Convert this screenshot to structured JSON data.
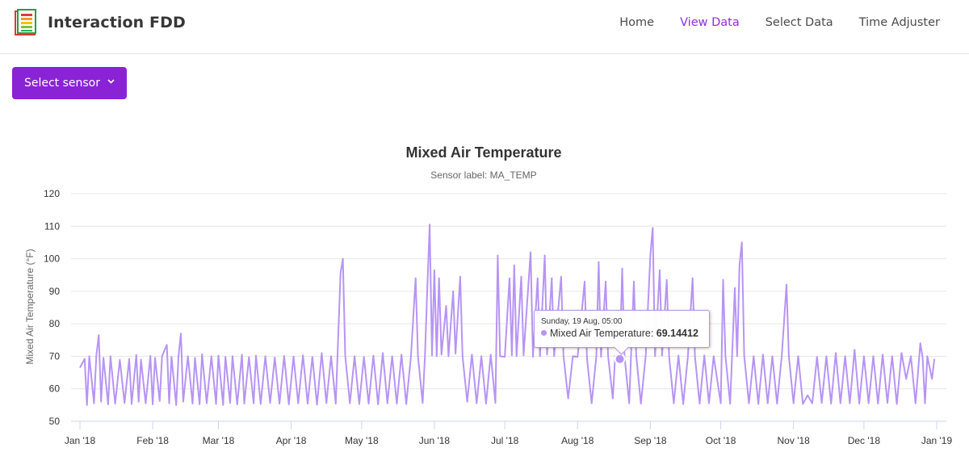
{
  "app": {
    "title": "Interaction FDD",
    "logo_icon": "bar-chart-notebook-icon"
  },
  "nav": {
    "items": [
      {
        "label": "Home",
        "active": false
      },
      {
        "label": "View Data",
        "active": true
      },
      {
        "label": "Select Data",
        "active": false
      },
      {
        "label": "Time Adjuster",
        "active": false
      }
    ],
    "active_color": "#8e2de2"
  },
  "sensor_select": {
    "label": "Select sensor",
    "icon": "chevron-down-icon",
    "color": "#8a22d6"
  },
  "chart_data": {
    "type": "line",
    "title": "Mixed Air Temperature",
    "subtitle": "Sensor label: MA_TEMP",
    "ylabel": "Mixed Air Temperature (°F)",
    "xlabel": "",
    "ylim": [
      50,
      120
    ],
    "yticks": [
      50,
      60,
      70,
      80,
      90,
      100,
      110,
      120
    ],
    "x_range": [
      "2018-01-01",
      "2019-01-01"
    ],
    "x_tick_labels": [
      "Jan '18",
      "Feb '18",
      "Mar '18",
      "Apr '18",
      "May '18",
      "Jun '18",
      "Jul '18",
      "Aug '18",
      "Sep '18",
      "Oct '18",
      "Nov '18",
      "Dec '18",
      "Jan '19"
    ],
    "grid": true,
    "legend": "none",
    "series": [
      {
        "color": "#b794f4",
        "points": [
          [
            "2018-01-01",
            66.5
          ],
          [
            "2018-01-03",
            69.2
          ],
          [
            "2018-01-04",
            55.0
          ],
          [
            "2018-01-05",
            70.0
          ],
          [
            "2018-01-07",
            55.5
          ],
          [
            "2018-01-08",
            70.2
          ],
          [
            "2018-01-09",
            76.5
          ],
          [
            "2018-01-10",
            56.0
          ],
          [
            "2018-01-11",
            69.5
          ],
          [
            "2018-01-13",
            55.2
          ],
          [
            "2018-01-14",
            70.0
          ],
          [
            "2018-01-16",
            55.4
          ],
          [
            "2018-01-18",
            68.9
          ],
          [
            "2018-01-20",
            55.6
          ],
          [
            "2018-01-22",
            69.2
          ],
          [
            "2018-01-23",
            55.3
          ],
          [
            "2018-01-25",
            70.4
          ],
          [
            "2018-01-26",
            56.0
          ],
          [
            "2018-01-27",
            69.0
          ],
          [
            "2018-01-29",
            55.5
          ],
          [
            "2018-01-31",
            70.1
          ],
          [
            "2018-02-01",
            55.2
          ],
          [
            "2018-02-02",
            69.5
          ],
          [
            "2018-02-04",
            56.2
          ],
          [
            "2018-02-05",
            70.0
          ],
          [
            "2018-02-07",
            73.5
          ],
          [
            "2018-02-08",
            55.5
          ],
          [
            "2018-02-09",
            69.8
          ],
          [
            "2018-02-11",
            55.0
          ],
          [
            "2018-02-12",
            70.2
          ],
          [
            "2018-02-13",
            77.0
          ],
          [
            "2018-02-14",
            56.0
          ],
          [
            "2018-02-16",
            70.0
          ],
          [
            "2018-02-18",
            55.4
          ],
          [
            "2018-02-19",
            69.5
          ],
          [
            "2018-02-21",
            55.2
          ],
          [
            "2018-02-22",
            70.6
          ],
          [
            "2018-02-24",
            55.5
          ],
          [
            "2018-02-26",
            70.0
          ],
          [
            "2018-02-28",
            55.3
          ],
          [
            "2018-03-01",
            70.2
          ],
          [
            "2018-03-03",
            55.0
          ],
          [
            "2018-03-04",
            69.8
          ],
          [
            "2018-03-06",
            55.6
          ],
          [
            "2018-03-07",
            70.0
          ],
          [
            "2018-03-09",
            55.2
          ],
          [
            "2018-03-11",
            70.5
          ],
          [
            "2018-03-12",
            55.4
          ],
          [
            "2018-03-14",
            69.7
          ],
          [
            "2018-03-16",
            55.5
          ],
          [
            "2018-03-17",
            70.2
          ],
          [
            "2018-03-19",
            55.3
          ],
          [
            "2018-03-21",
            70.0
          ],
          [
            "2018-03-23",
            55.6
          ],
          [
            "2018-03-25",
            69.6
          ],
          [
            "2018-03-27",
            55.4
          ],
          [
            "2018-03-29",
            70.1
          ],
          [
            "2018-03-31",
            55.2
          ],
          [
            "2018-04-02",
            69.9
          ],
          [
            "2018-04-04",
            55.5
          ],
          [
            "2018-04-06",
            70.3
          ],
          [
            "2018-04-08",
            55.4
          ],
          [
            "2018-04-10",
            69.8
          ],
          [
            "2018-04-12",
            55.1
          ],
          [
            "2018-04-14",
            71.0
          ],
          [
            "2018-04-16",
            55.6
          ],
          [
            "2018-04-18",
            70.0
          ],
          [
            "2018-04-20",
            55.4
          ],
          [
            "2018-04-22",
            95.5
          ],
          [
            "2018-04-23",
            100.0
          ],
          [
            "2018-04-24",
            70.2
          ],
          [
            "2018-04-26",
            55.5
          ],
          [
            "2018-04-28",
            70.0
          ],
          [
            "2018-04-30",
            55.3
          ],
          [
            "2018-05-02",
            69.8
          ],
          [
            "2018-05-04",
            55.4
          ],
          [
            "2018-05-06",
            70.2
          ],
          [
            "2018-05-08",
            55.2
          ],
          [
            "2018-05-10",
            71.0
          ],
          [
            "2018-05-12",
            55.5
          ],
          [
            "2018-05-14",
            70.0
          ],
          [
            "2018-05-16",
            55.4
          ],
          [
            "2018-05-18",
            70.5
          ],
          [
            "2018-05-20",
            55.3
          ],
          [
            "2018-05-22",
            69.9
          ],
          [
            "2018-05-24",
            94.0
          ],
          [
            "2018-05-25",
            70.0
          ],
          [
            "2018-05-27",
            55.6
          ],
          [
            "2018-05-28",
            70.5
          ],
          [
            "2018-05-29",
            91.0
          ],
          [
            "2018-05-30",
            110.5
          ],
          [
            "2018-05-31",
            70.2
          ],
          [
            "2018-06-01",
            96.5
          ],
          [
            "2018-06-02",
            70.0
          ],
          [
            "2018-06-03",
            94.0
          ],
          [
            "2018-06-04",
            70.5
          ],
          [
            "2018-06-06",
            85.5
          ],
          [
            "2018-06-07",
            70.0
          ],
          [
            "2018-06-09",
            90.0
          ],
          [
            "2018-06-10",
            70.8
          ],
          [
            "2018-06-12",
            94.5
          ],
          [
            "2018-06-13",
            70.0
          ],
          [
            "2018-06-15",
            56.0
          ],
          [
            "2018-06-17",
            70.5
          ],
          [
            "2018-06-19",
            55.5
          ],
          [
            "2018-06-21",
            70.0
          ],
          [
            "2018-06-23",
            55.4
          ],
          [
            "2018-06-25",
            70.5
          ],
          [
            "2018-06-27",
            55.6
          ],
          [
            "2018-06-28",
            101.0
          ],
          [
            "2018-06-29",
            70.0
          ],
          [
            "2018-07-01",
            69.8
          ],
          [
            "2018-07-03",
            94.0
          ],
          [
            "2018-07-04",
            70.2
          ],
          [
            "2018-07-05",
            98.0
          ],
          [
            "2018-07-06",
            70.0
          ],
          [
            "2018-07-08",
            94.5
          ],
          [
            "2018-07-09",
            70.3
          ],
          [
            "2018-07-12",
            102.0
          ],
          [
            "2018-07-13",
            69.8
          ],
          [
            "2018-07-15",
            94.0
          ],
          [
            "2018-07-16",
            70.0
          ],
          [
            "2018-07-18",
            101.0
          ],
          [
            "2018-07-19",
            70.5
          ],
          [
            "2018-07-21",
            94.0
          ],
          [
            "2018-07-22",
            70.0
          ],
          [
            "2018-07-25",
            94.5
          ],
          [
            "2018-07-26",
            70.2
          ],
          [
            "2018-07-28",
            57.0
          ],
          [
            "2018-07-30",
            70.0
          ],
          [
            "2018-08-01",
            69.8
          ],
          [
            "2018-08-04",
            93.0
          ],
          [
            "2018-08-05",
            69.5
          ],
          [
            "2018-08-07",
            55.5
          ],
          [
            "2018-08-09",
            70.0
          ],
          [
            "2018-08-10",
            99.0
          ],
          [
            "2018-08-11",
            69.8
          ],
          [
            "2018-08-13",
            93.0
          ],
          [
            "2018-08-14",
            70.2
          ],
          [
            "2018-08-16",
            57.0
          ],
          [
            "2018-08-17",
            70.0
          ],
          [
            "2018-08-19",
            69.14412
          ],
          [
            "2018-08-20",
            97.0
          ],
          [
            "2018-08-21",
            70.0
          ],
          [
            "2018-08-23",
            55.5
          ],
          [
            "2018-08-25",
            93.0
          ],
          [
            "2018-08-26",
            70.2
          ],
          [
            "2018-08-28",
            55.4
          ],
          [
            "2018-08-30",
            70.0
          ],
          [
            "2018-09-01",
            101.0
          ],
          [
            "2018-09-02",
            109.5
          ],
          [
            "2018-09-03",
            70.0
          ],
          [
            "2018-09-05",
            96.5
          ],
          [
            "2018-09-06",
            70.2
          ],
          [
            "2018-09-08",
            93.5
          ],
          [
            "2018-09-09",
            70.0
          ],
          [
            "2018-09-11",
            55.5
          ],
          [
            "2018-09-13",
            70.2
          ],
          [
            "2018-09-15",
            55.3
          ],
          [
            "2018-09-17",
            70.0
          ],
          [
            "2018-09-19",
            94.0
          ],
          [
            "2018-09-20",
            70.0
          ],
          [
            "2018-09-22",
            55.4
          ],
          [
            "2018-09-24",
            70.3
          ],
          [
            "2018-09-26",
            55.5
          ],
          [
            "2018-09-28",
            70.0
          ],
          [
            "2018-10-01",
            55.5
          ],
          [
            "2018-10-02",
            93.5
          ],
          [
            "2018-10-03",
            70.0
          ],
          [
            "2018-10-05",
            55.4
          ],
          [
            "2018-10-07",
            91.0
          ],
          [
            "2018-10-08",
            70.0
          ],
          [
            "2018-10-09",
            98.0
          ],
          [
            "2018-10-10",
            105.0
          ],
          [
            "2018-10-11",
            70.2
          ],
          [
            "2018-10-13",
            55.5
          ],
          [
            "2018-10-15",
            70.0
          ],
          [
            "2018-10-17",
            55.3
          ],
          [
            "2018-10-19",
            70.5
          ],
          [
            "2018-10-21",
            55.5
          ],
          [
            "2018-10-23",
            70.0
          ],
          [
            "2018-10-25",
            55.4
          ],
          [
            "2018-10-27",
            70.0
          ],
          [
            "2018-10-29",
            92.0
          ],
          [
            "2018-10-30",
            70.0
          ],
          [
            "2018-11-01",
            55.5
          ],
          [
            "2018-11-03",
            70.0
          ],
          [
            "2018-11-05",
            55.3
          ],
          [
            "2018-11-07",
            58.0
          ],
          [
            "2018-11-09",
            55.5
          ],
          [
            "2018-11-11",
            69.8
          ],
          [
            "2018-11-13",
            55.6
          ],
          [
            "2018-11-15",
            70.0
          ],
          [
            "2018-11-17",
            55.4
          ],
          [
            "2018-11-19",
            71.0
          ],
          [
            "2018-11-21",
            55.5
          ],
          [
            "2018-11-23",
            70.0
          ],
          [
            "2018-11-25",
            55.5
          ],
          [
            "2018-11-27",
            72.0
          ],
          [
            "2018-11-29",
            55.4
          ],
          [
            "2018-12-01",
            70.0
          ],
          [
            "2018-12-03",
            55.5
          ],
          [
            "2018-12-05",
            70.0
          ],
          [
            "2018-12-07",
            55.4
          ],
          [
            "2018-12-09",
            70.5
          ],
          [
            "2018-12-11",
            55.6
          ],
          [
            "2018-12-13",
            70.0
          ],
          [
            "2018-12-15",
            55.3
          ],
          [
            "2018-12-17",
            71.0
          ],
          [
            "2018-12-19",
            63.0
          ],
          [
            "2018-12-21",
            70.0
          ],
          [
            "2018-12-23",
            55.5
          ],
          [
            "2018-12-25",
            74.0
          ],
          [
            "2018-12-26",
            69.5
          ],
          [
            "2018-12-27",
            55.5
          ],
          [
            "2018-12-28",
            70.0
          ],
          [
            "2018-12-30",
            63.0
          ],
          [
            "2018-12-31",
            69.2
          ]
        ]
      }
    ],
    "tooltip": {
      "date": "Sunday, 19 Aug, 05:00",
      "series_label": "Mixed Air Temperature:",
      "value": "69.14412",
      "x": "2018-08-19",
      "y": 69.14412
    }
  }
}
